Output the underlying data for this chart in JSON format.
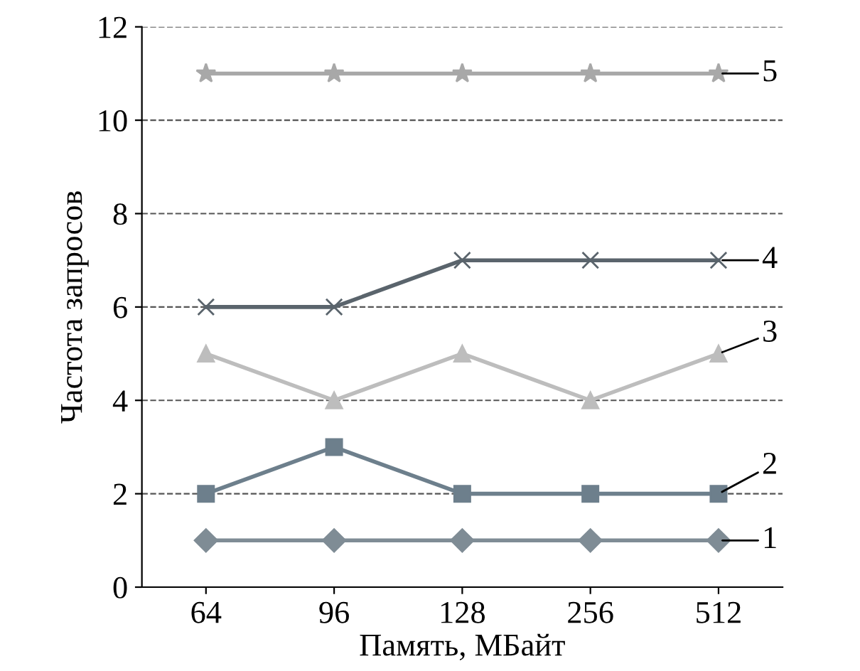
{
  "chart_data": {
    "type": "line",
    "xlabel": "Память, МБайт",
    "ylabel": "Частота запросов",
    "categories": [
      "64",
      "96",
      "128",
      "256",
      "512"
    ],
    "series": [
      {
        "name": "1",
        "color": "#7f8c95",
        "marker": "diamond",
        "values": [
          1,
          1,
          1,
          1,
          1
        ]
      },
      {
        "name": "2",
        "color": "#6d7f8c",
        "marker": "square",
        "values": [
          2,
          3,
          2,
          2,
          2
        ]
      },
      {
        "name": "3",
        "color": "#bdbdbd",
        "marker": "triangle",
        "values": [
          5,
          4,
          5,
          4,
          5
        ]
      },
      {
        "name": "4",
        "color": "#5a646c",
        "marker": "cross",
        "values": [
          6,
          6,
          7,
          7,
          7
        ]
      },
      {
        "name": "5",
        "color": "#a8a8a8",
        "marker": "star",
        "values": [
          11,
          11,
          11,
          11,
          11
        ]
      }
    ],
    "ylim": [
      0,
      12
    ],
    "yticks": [
      0,
      2,
      4,
      6,
      8,
      10,
      12
    ],
    "grid": "y",
    "legend": false,
    "line_style": "solid"
  }
}
